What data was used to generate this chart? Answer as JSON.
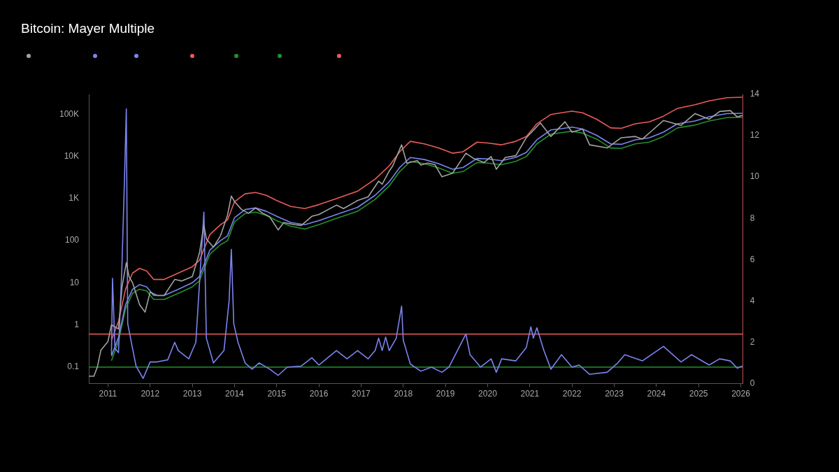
{
  "chart_data": {
    "type": "line",
    "title": "Bitcoin: Mayer Multiple",
    "xlim": [
      "2010-07-18",
      "2026-01-20"
    ],
    "xticks": [
      "2011",
      "2012",
      "2013",
      "2014",
      "2015",
      "2016",
      "2017",
      "2018",
      "2019",
      "2020",
      "2021",
      "2022",
      "2023",
      "2024",
      "2025",
      "2026"
    ],
    "log": "y",
    "ylim": [
      0.04,
      300000
    ],
    "yticks": [
      {
        "value": 0.1,
        "label": "0.1"
      },
      {
        "value": 1,
        "label": "1"
      },
      {
        "value": 10,
        "label": "10"
      },
      {
        "value": 100,
        "label": "100"
      },
      {
        "value": 1000,
        "label": "1K"
      },
      {
        "value": 10000,
        "label": "10K"
      },
      {
        "value": 100000,
        "label": "100K"
      }
    ],
    "y2lim": [
      0,
      14
    ],
    "y2ticks": [
      0,
      2,
      4,
      6,
      8,
      10,
      12,
      14
    ],
    "marker": "none",
    "line_style": "solid",
    "grid": false,
    "series": [
      {
        "color": "#a3a3a3",
        "x": [
          "2010-07-18",
          "2010-09-01",
          "2010-10-01",
          "2010-11-01",
          "2011-01-01",
          "2011-02-01",
          "2011-04-01",
          "2011-05-01",
          "2011-06-08",
          "2011-07-01",
          "2011-08-01",
          "2011-10-01",
          "2011-11-18",
          "2012-01-01",
          "2012-03-01",
          "2012-05-01",
          "2012-08-01",
          "2012-10-01",
          "2013-01-01",
          "2013-03-01",
          "2013-04-10",
          "2013-05-01",
          "2013-07-01",
          "2013-09-01",
          "2013-11-01",
          "2013-12-04",
          "2014-01-01",
          "2014-03-01",
          "2014-05-01",
          "2014-07-01",
          "2014-09-01",
          "2014-11-01",
          "2015-01-14",
          "2015-03-01",
          "2015-06-01",
          "2015-08-01",
          "2015-11-01",
          "2016-01-01",
          "2016-06-01",
          "2016-08-01",
          "2016-12-01",
          "2017-03-01",
          "2017-06-01",
          "2017-07-01",
          "2017-09-01",
          "2017-10-01",
          "2017-12-17",
          "2018-02-01",
          "2018-05-01",
          "2018-06-01",
          "2018-08-01",
          "2018-10-01",
          "2018-12-01",
          "2019-03-01",
          "2019-06-26",
          "2019-09-01",
          "2019-12-01",
          "2020-02-01",
          "2020-03-15",
          "2020-06-01",
          "2020-09-01",
          "2020-12-01",
          "2021-04-01",
          "2021-07-01",
          "2021-11-01",
          "2022-01-01",
          "2022-04-01",
          "2022-06-01",
          "2022-11-01",
          "2023-03-01",
          "2023-07-01",
          "2023-09-01",
          "2023-12-01",
          "2024-03-01",
          "2024-08-01",
          "2024-12-01",
          "2025-04-01",
          "2025-07-01",
          "2025-10-01",
          "2025-12-01",
          "2026-01-15"
        ],
        "values": [
          0.06,
          0.06,
          0.1,
          0.25,
          0.4,
          1,
          0.8,
          8,
          30,
          14,
          10,
          3,
          2,
          6,
          5,
          5,
          12,
          11,
          14,
          50,
          230,
          110,
          70,
          130,
          400,
          1150,
          850,
          550,
          450,
          600,
          450,
          370,
          180,
          270,
          240,
          230,
          380,
          420,
          700,
          580,
          900,
          1100,
          2600,
          2200,
          4500,
          6000,
          19000,
          7000,
          8000,
          6300,
          7000,
          6400,
          3300,
          4000,
          12000,
          9000,
          7200,
          10000,
          5000,
          9500,
          10500,
          28000,
          63000,
          30000,
          67000,
          38000,
          45000,
          19000,
          16000,
          28000,
          30000,
          26000,
          43000,
          72000,
          55000,
          105000,
          77000,
          118000,
          124000,
          88000,
          95000
        ]
      },
      {
        "color": "#7c84ee",
        "axis": "y2",
        "x": [
          "2011-02-01",
          "2011-02-10",
          "2011-03-01",
          "2011-04-01",
          "2011-05-01",
          "2011-05-20",
          "2011-06-08",
          "2011-06-20",
          "2011-08-01",
          "2011-09-01",
          "2011-11-01",
          "2012-01-01",
          "2012-03-01",
          "2012-06-01",
          "2012-08-01",
          "2012-09-01",
          "2012-12-01",
          "2013-02-01",
          "2013-04-10",
          "2013-05-01",
          "2013-07-01",
          "2013-10-01",
          "2013-11-15",
          "2013-12-04",
          "2013-12-25",
          "2014-02-01",
          "2014-04-01",
          "2014-06-01",
          "2014-08-01",
          "2014-11-01",
          "2015-01-14",
          "2015-04-01",
          "2015-08-01",
          "2015-11-01",
          "2016-01-01",
          "2016-06-01",
          "2016-09-01",
          "2016-12-01",
          "2017-03-01",
          "2017-05-01",
          "2017-06-01",
          "2017-07-01",
          "2017-08-01",
          "2017-09-01",
          "2017-11-01",
          "2017-12-17",
          "2018-01-01",
          "2018-03-01",
          "2018-06-01",
          "2018-09-01",
          "2018-12-01",
          "2019-02-01",
          "2019-06-26",
          "2019-08-01",
          "2019-11-01",
          "2020-02-01",
          "2020-03-15",
          "2020-05-01",
          "2020-09-01",
          "2020-12-01",
          "2021-01-10",
          "2021-02-01",
          "2021-03-01",
          "2021-05-01",
          "2021-07-01",
          "2021-10-01",
          "2022-01-01",
          "2022-03-01",
          "2022-06-01",
          "2022-11-01",
          "2023-02-01",
          "2023-04-01",
          "2023-09-01",
          "2024-03-01",
          "2024-08-01",
          "2024-11-01",
          "2025-04-01",
          "2025-07-01",
          "2025-10-01",
          "2025-12-01",
          "2026-01-15"
        ],
        "values": [
          1.4,
          5.1,
          1.7,
          1.5,
          5.8,
          9.4,
          13.3,
          2.9,
          1.7,
          0.85,
          0.25,
          1.05,
          1.05,
          1.15,
          2,
          1.6,
          1.2,
          2,
          8.3,
          2.2,
          1,
          1.6,
          4,
          6.5,
          2.9,
          2,
          1,
          0.7,
          1,
          0.7,
          0.4,
          0.8,
          0.85,
          1.25,
          0.9,
          1.6,
          1.2,
          1.6,
          1.2,
          1.6,
          2.2,
          1.6,
          2.25,
          1.6,
          2.2,
          3.75,
          2.1,
          0.95,
          0.6,
          0.8,
          0.55,
          0.8,
          2.4,
          1.4,
          0.8,
          1.2,
          0.55,
          1.2,
          1.1,
          1.75,
          2.75,
          2.2,
          2.7,
          1.6,
          0.7,
          1.4,
          0.8,
          0.9,
          0.45,
          0.55,
          1,
          1.4,
          1.1,
          1.8,
          1.05,
          1.4,
          0.9,
          1.2,
          1.1,
          0.75,
          0.85
        ]
      },
      {
        "color": "#7c84ee",
        "x": [
          "2011-02-01",
          "2011-04-01",
          "2011-06-01",
          "2011-08-01",
          "2011-10-01",
          "2011-12-01",
          "2012-02-01",
          "2012-05-01",
          "2012-09-01",
          "2013-01-01",
          "2013-03-01",
          "2013-06-01",
          "2013-09-01",
          "2013-11-01",
          "2014-01-01",
          "2014-04-01",
          "2014-07-01",
          "2014-10-01",
          "2015-01-01",
          "2015-05-01",
          "2015-09-01",
          "2016-01-01",
          "2016-06-01",
          "2016-12-01",
          "2017-05-01",
          "2017-09-01",
          "2017-12-01",
          "2018-03-01",
          "2018-07-01",
          "2018-11-01",
          "2019-03-01",
          "2019-06-01",
          "2019-10-01",
          "2020-01-01",
          "2020-05-01",
          "2020-09-01",
          "2020-12-01",
          "2021-03-01",
          "2021-07-01",
          "2021-10-01",
          "2022-01-01",
          "2022-04-01",
          "2022-08-01",
          "2022-12-01",
          "2023-03-01",
          "2023-07-01",
          "2023-11-01",
          "2024-03-01",
          "2024-07-01",
          "2024-12-01",
          "2025-04-01",
          "2025-09-01",
          "2026-01-15"
        ],
        "values": [
          0.18,
          0.5,
          3,
          7,
          9,
          8,
          5,
          5,
          7,
          10,
          14,
          60,
          100,
          130,
          350,
          550,
          600,
          500,
          380,
          270,
          240,
          300,
          420,
          620,
          1200,
          2500,
          5500,
          9500,
          8500,
          6800,
          5000,
          5500,
          9000,
          8800,
          8000,
          9600,
          12500,
          25000,
          43000,
          46000,
          50000,
          45000,
          32000,
          20000,
          19500,
          25000,
          28000,
          38000,
          60000,
          70000,
          88000,
          105000,
          107000
        ]
      },
      {
        "color": "#ea5b5b",
        "x": [
          "2011-02-01",
          "2011-04-01",
          "2011-06-01",
          "2011-08-01",
          "2011-10-01",
          "2011-12-01",
          "2012-02-01",
          "2012-05-01",
          "2012-09-01",
          "2013-01-01",
          "2013-03-01",
          "2013-06-01",
          "2013-09-01",
          "2013-11-01",
          "2014-01-01",
          "2014-04-01",
          "2014-07-01",
          "2014-10-01",
          "2015-01-01",
          "2015-05-01",
          "2015-09-01",
          "2016-01-01",
          "2016-06-01",
          "2016-12-01",
          "2017-05-01",
          "2017-09-01",
          "2017-12-01",
          "2018-03-01",
          "2018-07-01",
          "2018-11-01",
          "2019-03-01",
          "2019-06-01",
          "2019-10-01",
          "2020-01-01",
          "2020-05-01",
          "2020-09-01",
          "2020-12-01",
          "2021-03-01",
          "2021-07-01",
          "2021-10-01",
          "2022-01-01",
          "2022-04-01",
          "2022-08-01",
          "2022-12-01",
          "2023-03-01",
          "2023-07-01",
          "2023-11-01",
          "2024-03-01",
          "2024-07-01",
          "2024-12-01",
          "2025-04-01",
          "2025-09-01",
          "2026-01-15"
        ],
        "values": [
          0.43,
          1.2,
          7,
          17,
          22,
          19,
          12,
          12,
          17,
          24,
          34,
          140,
          240,
          310,
          840,
          1300,
          1400,
          1200,
          900,
          650,
          580,
          720,
          1000,
          1500,
          2900,
          6000,
          13000,
          23000,
          20000,
          16000,
          12000,
          13000,
          22000,
          21000,
          19000,
          23000,
          30000,
          60000,
          100000,
          110000,
          120000,
          110000,
          77000,
          48000,
          47000,
          60000,
          67000,
          91000,
          140000,
          170000,
          210000,
          250000,
          257000
        ]
      },
      {
        "color": "#22922a",
        "x": [
          "2011-02-01",
          "2011-04-01",
          "2011-06-01",
          "2011-08-01",
          "2011-10-01",
          "2011-12-01",
          "2012-02-01",
          "2012-05-01",
          "2012-09-01",
          "2013-01-01",
          "2013-03-01",
          "2013-06-01",
          "2013-09-01",
          "2013-11-01",
          "2014-01-01",
          "2014-04-01",
          "2014-07-01",
          "2014-10-01",
          "2015-01-01",
          "2015-05-01",
          "2015-09-01",
          "2016-01-01",
          "2016-06-01",
          "2016-12-01",
          "2017-05-01",
          "2017-09-01",
          "2017-12-01",
          "2018-03-01",
          "2018-07-01",
          "2018-11-01",
          "2019-03-01",
          "2019-06-01",
          "2019-10-01",
          "2020-01-01",
          "2020-05-01",
          "2020-09-01",
          "2020-12-01",
          "2021-03-01",
          "2021-07-01",
          "2021-10-01",
          "2022-01-01",
          "2022-04-01",
          "2022-08-01",
          "2022-12-01",
          "2023-03-01",
          "2023-07-01",
          "2023-11-01",
          "2024-03-01",
          "2024-07-01",
          "2024-12-01",
          "2025-04-01",
          "2025-09-01",
          "2026-01-15"
        ],
        "values": [
          0.14,
          0.4,
          2.4,
          5.6,
          7,
          6.4,
          4,
          4,
          5.6,
          8,
          11,
          48,
          80,
          100,
          280,
          440,
          480,
          400,
          300,
          220,
          190,
          240,
          340,
          500,
          960,
          2000,
          4400,
          7600,
          6800,
          5400,
          4000,
          4400,
          7200,
          7000,
          6400,
          7700,
          10000,
          20000,
          34000,
          37000,
          40000,
          36000,
          26000,
          16000,
          15600,
          20000,
          22000,
          30000,
          48000,
          56000,
          70000,
          84000,
          86000
        ]
      },
      {
        "color": "#22922a",
        "axis": "y2",
        "x": [
          "2010-07-18",
          "2026-01-20"
        ],
        "values": [
          0.8,
          0.8
        ]
      },
      {
        "color": "#ea5b5b",
        "axis": "y2",
        "x": [
          "2010-07-18",
          "2026-01-20"
        ],
        "values": [
          2.4,
          2.4
        ]
      }
    ]
  }
}
